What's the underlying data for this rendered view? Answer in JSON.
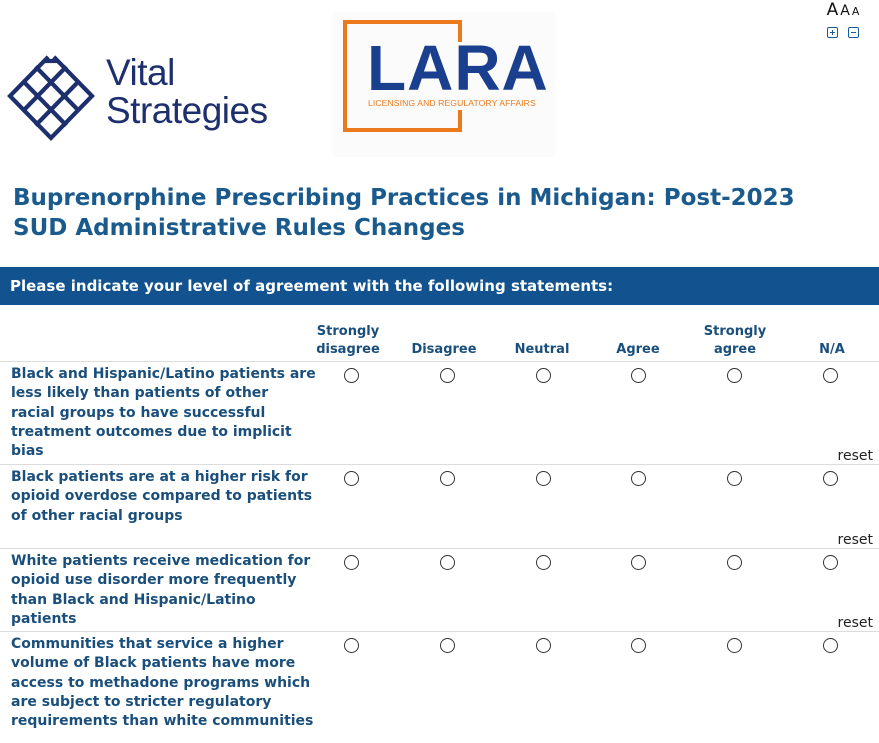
{
  "font_controls": {
    "letters": [
      "A",
      "A",
      "A"
    ],
    "increase_icon": "plus-square-icon",
    "decrease_icon": "minus-square-icon"
  },
  "logos": {
    "vital_strategies": {
      "line1": "Vital",
      "line2": "Strategies",
      "color": "#1e2f6e"
    },
    "lara": {
      "word": "LARA",
      "subtitle": "LICENSING AND REGULATORY AFFAIRS",
      "word_color": "#1b3f8f",
      "accent_color": "#ec7a1c"
    }
  },
  "survey": {
    "title": "Buprenorphine Prescribing Practices in Michigan: Post-2023 SUD Administrative Rules Changes",
    "section_header": "Please indicate your level of agreement with the following statements:",
    "header_color": "#12538f",
    "columns": [
      {
        "line1": "Strongly",
        "line2": "disagree"
      },
      {
        "line1": "",
        "line2": "Disagree"
      },
      {
        "line1": "",
        "line2": "Neutral"
      },
      {
        "line1": "",
        "line2": "Agree"
      },
      {
        "line1": "Strongly",
        "line2": "agree"
      },
      {
        "line1": "",
        "line2": "N/A"
      }
    ],
    "reset_label": "reset",
    "rows": [
      {
        "label": "Black and Hispanic/Latino patients are less likely than patients of other racial groups to have successful treatment outcomes due to implicit bias",
        "selected": null
      },
      {
        "label": "Black patients are at a higher risk for opioid overdose compared to patients of other racial groups",
        "selected": null
      },
      {
        "label": "White patients receive medication for opioid use disorder more frequently than Black and Hispanic/Latino patients",
        "selected": null
      },
      {
        "label": "Communities that service a higher volume of Black patients have more access to methadone programs which are subject to stricter regulatory requirements than white communities",
        "selected": null
      }
    ]
  }
}
